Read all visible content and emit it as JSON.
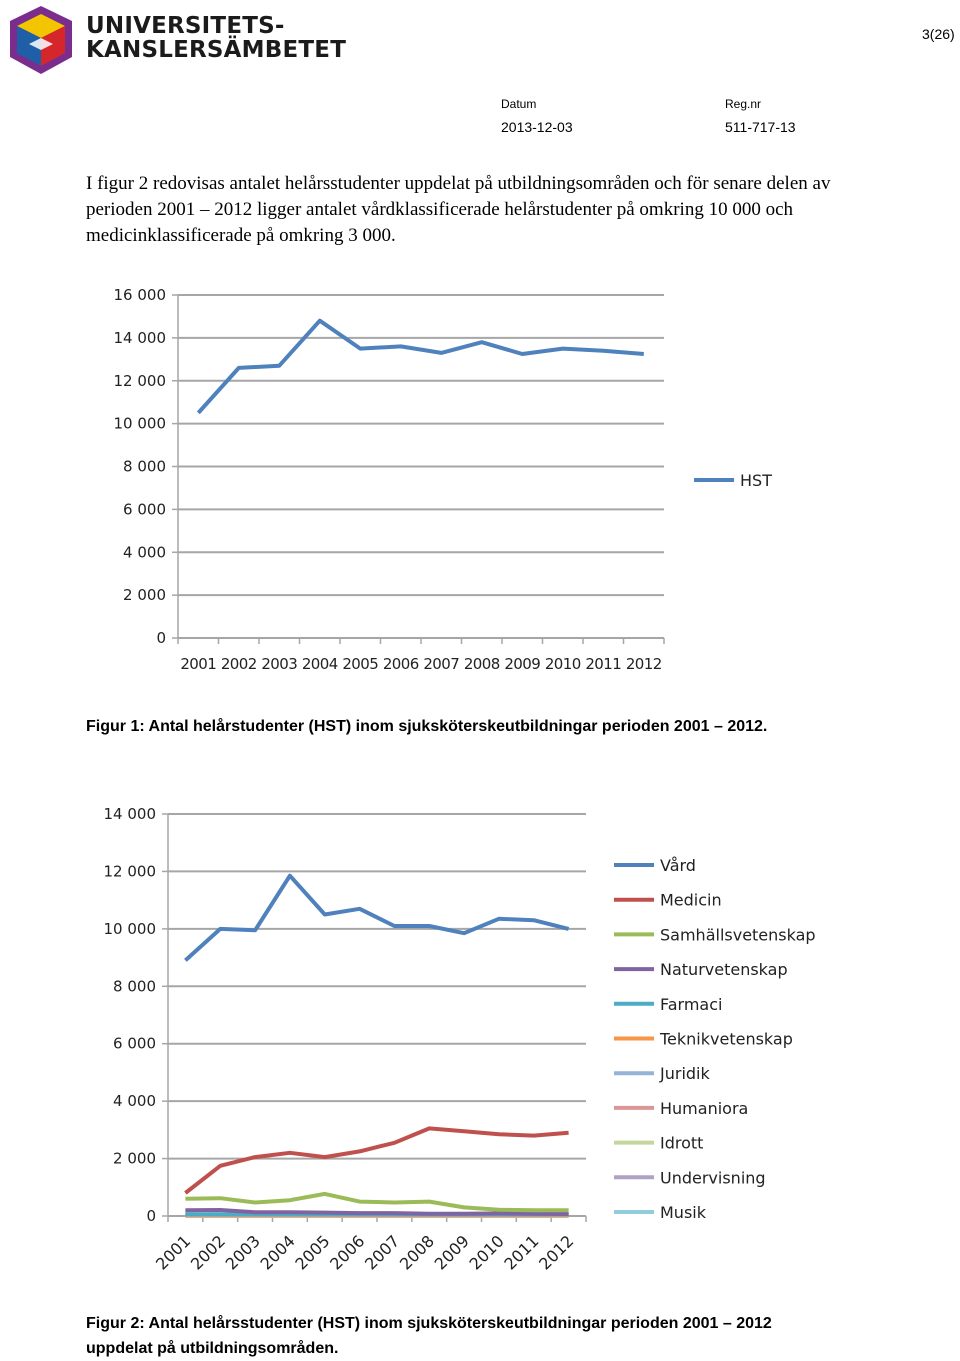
{
  "header": {
    "logo_line1": "UNIVERSITETS-",
    "logo_line2": "KANSLERSÄMBETET",
    "page": "3(26)",
    "date_label": "Datum",
    "date_value": "2013-12-03",
    "reg_label": "Reg.nr",
    "reg_value": "511-717-13"
  },
  "intro_text": "I figur 2 redovisas antalet helårsstudenter uppdelat på utbildningsområden och för senare delen av perioden 2001 – 2012 ligger antalet vårdklassificerade helårstudenter på omkring 10 000 och medicinklassificerade på omkring 3 000.",
  "chart_data": [
    {
      "type": "line",
      "x": [
        "2001",
        "2002",
        "2003",
        "2004",
        "2005",
        "2006",
        "2007",
        "2008",
        "2009",
        "2010",
        "2011",
        "2012"
      ],
      "ylim": [
        0,
        16000
      ],
      "yticks": [
        "0",
        "2 000",
        "4 000",
        "6 000",
        "8 000",
        "10 000",
        "12 000",
        "14 000",
        "16 000"
      ],
      "grid": true,
      "legend": "right",
      "series": [
        {
          "name": "HST",
          "color": "#4f81bd",
          "values": [
            10500,
            12600,
            12700,
            14800,
            13500,
            13600,
            13300,
            13800,
            13250,
            13500,
            13400,
            13250
          ]
        }
      ]
    },
    {
      "type": "line",
      "x": [
        "2001",
        "2002",
        "2003",
        "2004",
        "2005",
        "2006",
        "2007",
        "2008",
        "2009",
        "2010",
        "2011",
        "2012"
      ],
      "ylim": [
        0,
        14000
      ],
      "yticks": [
        "0",
        "2 000",
        "4 000",
        "6 000",
        "8 000",
        "10 000",
        "12 000",
        "14 000"
      ],
      "grid": true,
      "legend": "right",
      "series": [
        {
          "name": "Vård",
          "color": "#4f81bd",
          "values": [
            8900,
            10000,
            9950,
            11850,
            10500,
            10700,
            10100,
            10100,
            9850,
            10350,
            10300,
            10000
          ]
        },
        {
          "name": "Medicin",
          "color": "#c0504d",
          "values": [
            800,
            1750,
            2050,
            2200,
            2050,
            2250,
            2550,
            3050,
            2950,
            2850,
            2800,
            2900
          ]
        },
        {
          "name": "Samhällsvetenskap",
          "color": "#9bbb59",
          "values": [
            600,
            620,
            470,
            550,
            770,
            500,
            470,
            500,
            300,
            220,
            200,
            200
          ]
        },
        {
          "name": "Naturvetenskap",
          "color": "#8064a2",
          "values": [
            200,
            210,
            130,
            130,
            120,
            100,
            100,
            80,
            80,
            90,
            80,
            70
          ]
        },
        {
          "name": "Farmaci",
          "color": "#4bacc6",
          "values": [
            60,
            60,
            60,
            60,
            60,
            60,
            60,
            60,
            60,
            60,
            60,
            60
          ]
        },
        {
          "name": "Teknikvetenskap",
          "color": "#f79646",
          "values": [
            40,
            40,
            40,
            40,
            40,
            40,
            40,
            40,
            40,
            40,
            40,
            40
          ]
        },
        {
          "name": "Juridik",
          "color": "#95b3d7",
          "values": [
            30,
            30,
            30,
            30,
            30,
            30,
            30,
            30,
            30,
            30,
            30,
            30
          ]
        },
        {
          "name": "Humaniora",
          "color": "#d99694",
          "values": [
            20,
            20,
            20,
            20,
            20,
            20,
            20,
            20,
            20,
            20,
            20,
            20
          ]
        },
        {
          "name": "Idrott",
          "color": "#c3d69b",
          "values": [
            10,
            10,
            10,
            10,
            10,
            10,
            10,
            10,
            10,
            10,
            10,
            10
          ]
        },
        {
          "name": "Undervisning",
          "color": "#b2a1c7",
          "values": [
            10,
            10,
            10,
            10,
            10,
            10,
            10,
            10,
            10,
            10,
            10,
            10
          ]
        },
        {
          "name": "Musik",
          "color": "#92cddc",
          "values": [
            5,
            5,
            5,
            5,
            5,
            5,
            5,
            5,
            5,
            5,
            5,
            5
          ]
        }
      ]
    }
  ],
  "captions": {
    "fig1": "Figur 1: Antal helårstudenter (HST) inom sjuksköterskeutbildningar perioden 2001 – 2012.",
    "fig2_line1": "Figur 2: Antal helårsstudenter (HST) inom sjuksköterskeutbildningar perioden 2001 – 2012",
    "fig2_line2": "uppdelat på utbildningsområden."
  },
  "colors": {
    "logo_purple": "#7b2d8e",
    "logo_blue": "#1f5fa8",
    "logo_yellow": "#f2c500",
    "logo_red": "#d4262b"
  }
}
